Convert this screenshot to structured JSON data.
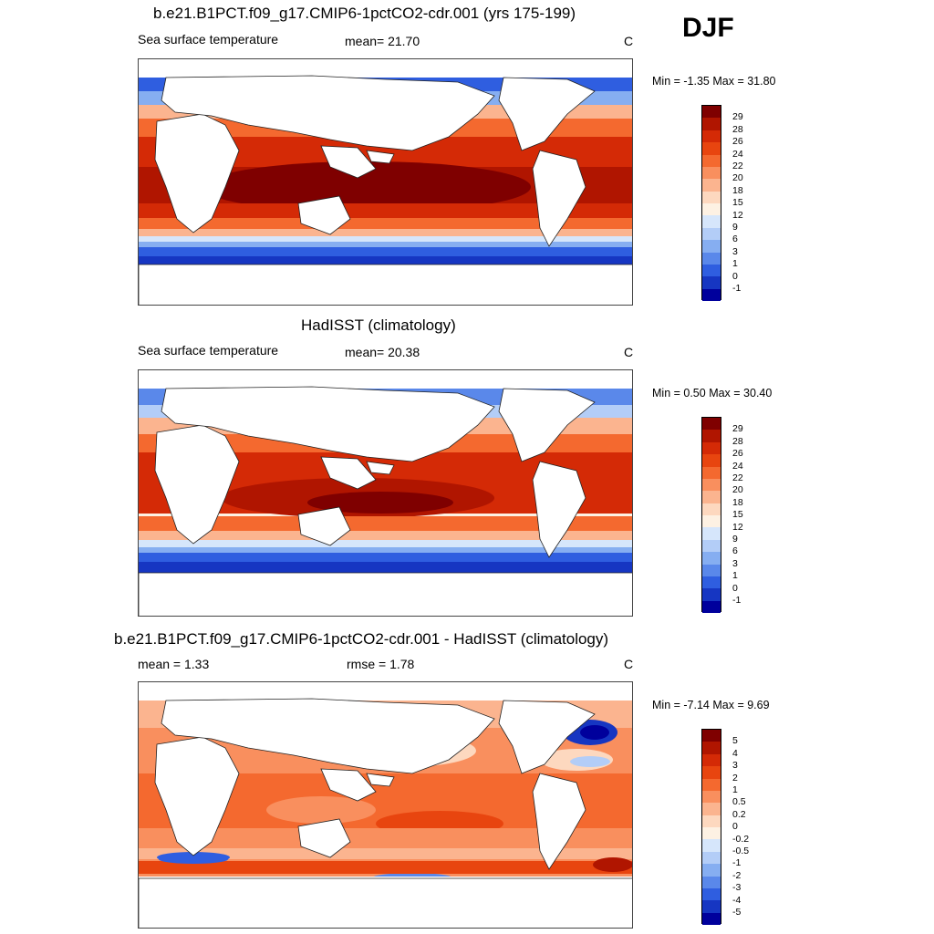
{
  "season": "DJF",
  "panels": [
    {
      "title": "b.e21.B1PCT.f09_g17.CMIP6-1pctCO2-cdr.001 (yrs 175-199)",
      "left_label": "Sea surface temperature",
      "center_label": "mean=  21.70",
      "units": "C",
      "minmax": "Min =  -1.35 Max =  31.80",
      "colorbar": {
        "labels": [
          "29",
          "28",
          "26",
          "24",
          "22",
          "20",
          "18",
          "15",
          "12",
          "9",
          "6",
          "3",
          "1",
          "0",
          "-1"
        ],
        "colors": [
          "#7f0000",
          "#b01500",
          "#d42a06",
          "#e8450f",
          "#f4692f",
          "#f98f5e",
          "#fbb48f",
          "#fdd8bf",
          "#fdf1e3",
          "#d6e6fb",
          "#b3cdf7",
          "#86aef1",
          "#5a88ea",
          "#2f5ee0",
          "#1636c2",
          "#00009c"
        ]
      }
    },
    {
      "title": "HadISST (climatology)",
      "left_label": "Sea surface temperature",
      "center_label": "mean=  20.38",
      "units": "C",
      "minmax": "Min =   0.50 Max =  30.40",
      "colorbar": {
        "labels": [
          "29",
          "28",
          "26",
          "24",
          "22",
          "20",
          "18",
          "15",
          "12",
          "9",
          "6",
          "3",
          "1",
          "0",
          "-1"
        ],
        "colors": [
          "#7f0000",
          "#b01500",
          "#d42a06",
          "#e8450f",
          "#f4692f",
          "#f98f5e",
          "#fbb48f",
          "#fdd8bf",
          "#fdf1e3",
          "#d6e6fb",
          "#b3cdf7",
          "#86aef1",
          "#5a88ea",
          "#2f5ee0",
          "#1636c2",
          "#00009c"
        ]
      }
    },
    {
      "title": "b.e21.B1PCT.f09_g17.CMIP6-1pctCO2-cdr.001 - HadISST (climatology)",
      "left_label": "mean =   1.33",
      "center_label": "rmse =   1.78",
      "units": "C",
      "minmax": "Min =  -7.14 Max =   9.69",
      "colorbar": {
        "labels": [
          "5",
          "4",
          "3",
          "2",
          "1",
          "0.5",
          "0.2",
          "0",
          "-0.2",
          "-0.5",
          "-1",
          "-2",
          "-3",
          "-4",
          "-5"
        ],
        "colors": [
          "#7f0000",
          "#b01500",
          "#d42a06",
          "#e8450f",
          "#f4692f",
          "#f98f5e",
          "#fbb48f",
          "#fdd8bf",
          "#fdf1e3",
          "#d6e6fb",
          "#b3cdf7",
          "#86aef1",
          "#5a88ea",
          "#2f5ee0",
          "#1636c2",
          "#00009c"
        ]
      }
    }
  ]
}
